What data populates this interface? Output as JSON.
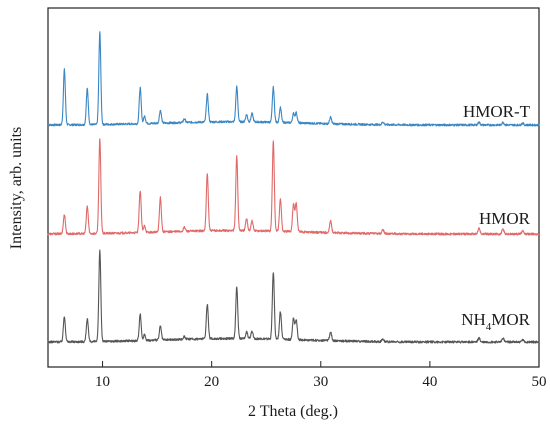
{
  "chart_data": {
    "type": "line",
    "title": "",
    "xlabel": "2 Theta (deg.)",
    "ylabel": "Intensity, arb. units",
    "xlim": [
      5,
      50
    ],
    "xticks": [
      10,
      20,
      30,
      40,
      50
    ],
    "xtick_labels": [
      "10",
      "20",
      "30",
      "40",
      "50"
    ],
    "y_ticks_shown": false,
    "grid": false,
    "legend": "none; series named by text labels beside each trace on the right",
    "offset_stacked": true,
    "peaks_2theta": [
      6.5,
      8.6,
      9.75,
      13.45,
      13.85,
      15.3,
      17.5,
      19.6,
      22.3,
      23.2,
      23.7,
      25.65,
      26.3,
      27.5,
      27.75,
      30.9,
      35.7,
      44.5,
      46.7,
      48.5
    ],
    "series": [
      {
        "name": "HMOR-T",
        "color": "#3a87c4",
        "peak_heights": [
          0.6,
          0.39,
          1.0,
          0.39,
          0.08,
          0.14,
          0.04,
          0.3,
          0.38,
          0.08,
          0.09,
          0.38,
          0.16,
          0.1,
          0.11,
          0.07,
          0.03,
          0.03,
          0.03,
          0.02
        ]
      },
      {
        "name": "HMOR",
        "color": "#e06a6a",
        "peak_heights": [
          0.2,
          0.28,
          0.96,
          0.43,
          0.07,
          0.35,
          0.04,
          0.58,
          0.76,
          0.12,
          0.1,
          0.92,
          0.33,
          0.28,
          0.29,
          0.12,
          0.04,
          0.06,
          0.05,
          0.03
        ]
      },
      {
        "name_parts": [
          "NH",
          "4",
          "MOR"
        ],
        "color": "#555555",
        "peak_heights": [
          0.26,
          0.23,
          0.92,
          0.27,
          0.06,
          0.14,
          0.03,
          0.35,
          0.52,
          0.07,
          0.08,
          0.68,
          0.28,
          0.22,
          0.2,
          0.09,
          0.03,
          0.04,
          0.04,
          0.02
        ]
      }
    ]
  }
}
